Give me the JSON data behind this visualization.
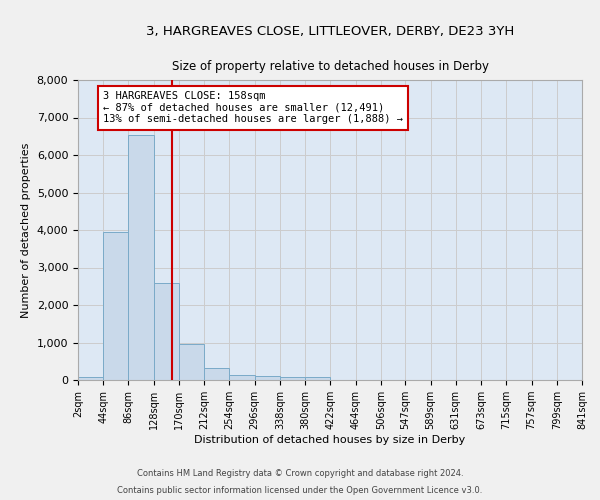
{
  "title1": "3, HARGREAVES CLOSE, LITTLEOVER, DERBY, DE23 3YH",
  "title2": "Size of property relative to detached houses in Derby",
  "xlabel": "Distribution of detached houses by size in Derby",
  "ylabel": "Number of detached properties",
  "bar_color": "#c9d9ea",
  "bar_edge_color": "#7aaac8",
  "grid_color": "#cccccc",
  "bg_color": "#dde8f4",
  "fig_bg_color": "#f0f0f0",
  "bin_edges": [
    2,
    44,
    86,
    128,
    170,
    212,
    254,
    296,
    338,
    380,
    422,
    464,
    506,
    547,
    589,
    631,
    673,
    715,
    757,
    799,
    841
  ],
  "bar_heights": [
    80,
    3950,
    6530,
    2600,
    950,
    310,
    130,
    120,
    90,
    70,
    0,
    0,
    0,
    0,
    0,
    0,
    0,
    0,
    0,
    0
  ],
  "vline_x": 158,
  "vline_color": "#cc0000",
  "annotation_text": "3 HARGREAVES CLOSE: 158sqm\n← 87% of detached houses are smaller (12,491)\n13% of semi-detached houses are larger (1,888) →",
  "annotation_box_color": "#ffffff",
  "annotation_box_edge_color": "#cc0000",
  "footer1": "Contains HM Land Registry data © Crown copyright and database right 2024.",
  "footer2": "Contains public sector information licensed under the Open Government Licence v3.0.",
  "ylim": [
    0,
    8000
  ],
  "title1_fontsize": 9.5,
  "title2_fontsize": 8.5,
  "tick_label_fontsize": 7,
  "ylabel_fontsize": 8,
  "xlabel_fontsize": 8,
  "annotation_fontsize": 7.5
}
